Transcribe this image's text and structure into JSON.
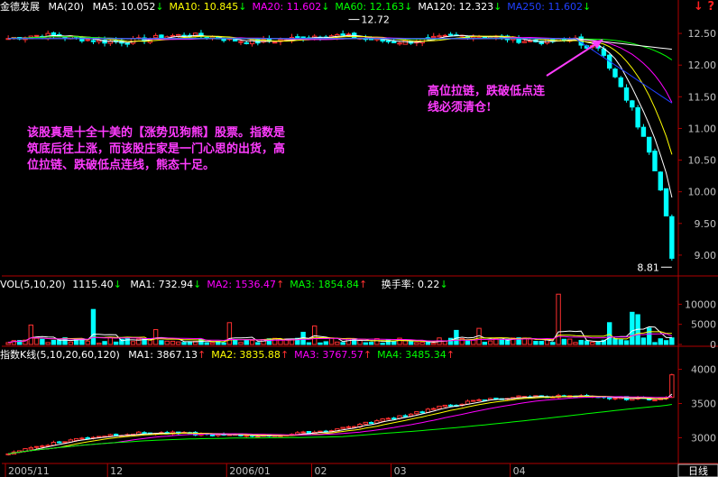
{
  "stock": {
    "name": "金德发展",
    "ma_label": "MA(20)",
    "legend": [
      {
        "label": "MA5:",
        "value": "10.052",
        "arrow": "↓",
        "color": "#ffffff"
      },
      {
        "label": "MA10:",
        "value": "10.845",
        "arrow": "↓",
        "color": "#ffff00"
      },
      {
        "label": "MA20:",
        "value": "11.602",
        "arrow": "↓",
        "color": "#ff00ff"
      },
      {
        "label": "MA60:",
        "value": "12.163",
        "arrow": "↓",
        "color": "#00ff00"
      },
      {
        "label": "MA120:",
        "value": "12.323",
        "arrow": "↓",
        "color": "#ffffff"
      },
      {
        "label": "MA250:",
        "value": "11.602",
        "arrow": "↓",
        "color": "#2040ff"
      }
    ]
  },
  "volume": {
    "title": "VOL(5,10,20)",
    "value": "1115.40",
    "arrow": "↓",
    "legend": [
      {
        "label": "MA1:",
        "value": "732.94",
        "arrow": "↓",
        "color": "#ffffff"
      },
      {
        "label": "MA2:",
        "value": "1536.47",
        "arrow": "↑",
        "color": "#ff00ff"
      },
      {
        "label": "MA3:",
        "value": "1854.84",
        "arrow": "↑",
        "color": "#00ff00"
      }
    ],
    "turnover_label": "换手率:",
    "turnover_value": "0.22",
    "turnover_arrow": "↓"
  },
  "index": {
    "title": "指数K线(5,10,20,60,120)",
    "legend": [
      {
        "label": "MA1:",
        "value": "3867.13",
        "arrow": "↑",
        "color": "#ffffff"
      },
      {
        "label": "MA2:",
        "value": "3835.88",
        "arrow": "↑",
        "color": "#ffff00"
      },
      {
        "label": "MA3:",
        "value": "3767.57",
        "arrow": "↑",
        "color": "#ff00ff"
      },
      {
        "label": "MA4:",
        "value": "3485.34",
        "arrow": "↑",
        "color": "#00ff00"
      }
    ]
  },
  "annotations": {
    "main": "该股真是十全十美的【涨势见狗熊】股票。指数是筑底后往上涨，而该股庄家是一门心思的出货，高位拉链、跌破低点连线，熊态十足。",
    "side": "高位拉链，跌破低点连线必须清仓!"
  },
  "icons": {
    "left": "↓",
    "right": "?"
  },
  "chart_data": [
    {
      "type": "candlestick",
      "panel": "price",
      "y_ticks": [
        "12.50",
        "12.00",
        "11.50",
        "11.00",
        "10.50",
        "10.00",
        "9.50",
        "9.00"
      ],
      "ylim": [
        8.7,
        12.8
      ],
      "high_marker": "12.72",
      "low_marker": "8.81",
      "series": [
        {
          "name": "MA5",
          "color": "#ffffff"
        },
        {
          "name": "MA10",
          "color": "#ffff00"
        },
        {
          "name": "MA20",
          "color": "#ff00ff"
        },
        {
          "name": "MA60",
          "color": "#00ff00"
        },
        {
          "name": "MA120",
          "color": "#ffffff"
        },
        {
          "name": "MA250",
          "color": "#2040ff"
        }
      ],
      "last_values": {
        "MA5": 10.052,
        "MA10": 10.845,
        "MA20": 11.602,
        "MA60": 12.163,
        "MA120": 12.323,
        "MA250": 11.602
      }
    },
    {
      "type": "bar",
      "panel": "volume",
      "y_ticks": [
        "10000",
        "5000",
        "0"
      ],
      "ylim": [
        0,
        13000
      ]
    },
    {
      "type": "candlestick",
      "panel": "index",
      "y_ticks": [
        "4000",
        "3500",
        "3000"
      ],
      "ylim": [
        2650,
        4100
      ]
    }
  ],
  "x_axis": {
    "labels": [
      "2005/11",
      "12",
      "2006/01",
      "02",
      "03",
      "04"
    ],
    "period": "日线"
  }
}
